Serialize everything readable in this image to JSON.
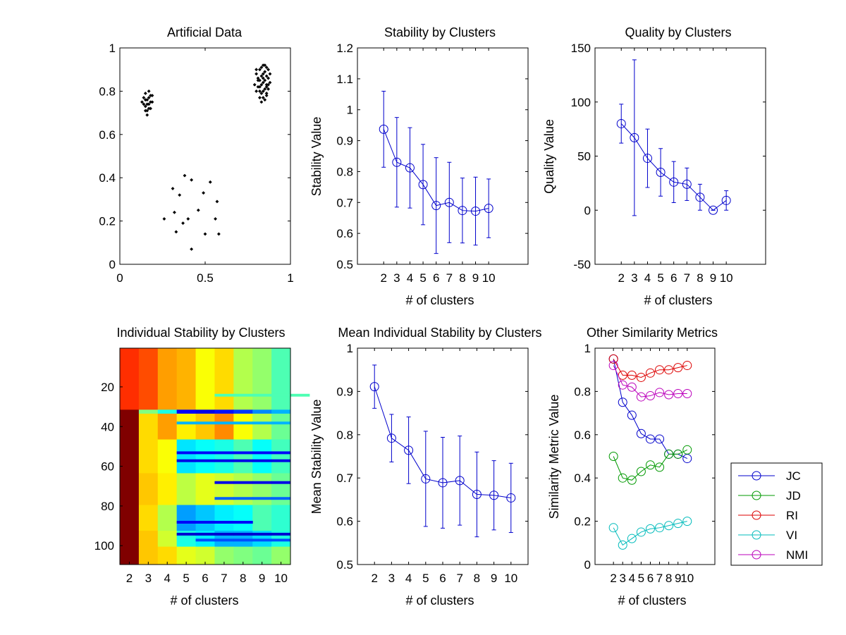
{
  "chart_data": [
    {
      "id": "p1",
      "type": "scatter",
      "title": "Artificial Data",
      "xlabel": "",
      "ylabel": "",
      "xlim": [
        0,
        1
      ],
      "ylim": [
        0,
        1
      ],
      "xticks": [
        0,
        0.5,
        1
      ],
      "yticks": [
        0,
        0.2,
        0.4,
        0.6,
        0.8,
        1
      ],
      "marker_color": "#000000",
      "clusters": [
        {
          "name": "",
          "points": [
            [
              0.14,
              0.77
            ],
            [
              0.15,
              0.79
            ],
            [
              0.16,
              0.76
            ],
            [
              0.17,
              0.74
            ],
            [
              0.15,
              0.73
            ],
            [
              0.18,
              0.78
            ],
            [
              0.16,
              0.71
            ],
            [
              0.17,
              0.8
            ],
            [
              0.19,
              0.75
            ],
            [
              0.14,
              0.74
            ],
            [
              0.16,
              0.69
            ],
            [
              0.18,
              0.72
            ],
            [
              0.15,
              0.76
            ],
            [
              0.17,
              0.77
            ],
            [
              0.13,
              0.75
            ],
            [
              0.19,
              0.78
            ],
            [
              0.16,
              0.74
            ],
            [
              0.18,
              0.75
            ],
            [
              0.15,
              0.71
            ],
            [
              0.17,
              0.72
            ]
          ]
        },
        {
          "name": "",
          "points": [
            [
              0.38,
              0.41
            ],
            [
              0.42,
              0.39
            ],
            [
              0.31,
              0.35
            ],
            [
              0.53,
              0.38
            ],
            [
              0.35,
              0.32
            ],
            [
              0.49,
              0.33
            ],
            [
              0.57,
              0.29
            ],
            [
              0.26,
              0.21
            ],
            [
              0.32,
              0.24
            ],
            [
              0.46,
              0.25
            ],
            [
              0.56,
              0.21
            ],
            [
              0.4,
              0.21
            ],
            [
              0.37,
              0.19
            ],
            [
              0.33,
              0.15
            ],
            [
              0.5,
              0.14
            ],
            [
              0.58,
              0.14
            ],
            [
              0.42,
              0.07
            ]
          ]
        },
        {
          "name": "",
          "points": [
            [
              0.82,
              0.9
            ],
            [
              0.84,
              0.92
            ],
            [
              0.86,
              0.91
            ],
            [
              0.8,
              0.88
            ],
            [
              0.83,
              0.87
            ],
            [
              0.85,
              0.89
            ],
            [
              0.87,
              0.86
            ],
            [
              0.81,
              0.85
            ],
            [
              0.84,
              0.84
            ],
            [
              0.86,
              0.83
            ],
            [
              0.79,
              0.83
            ],
            [
              0.82,
              0.82
            ],
            [
              0.85,
              0.81
            ],
            [
              0.88,
              0.84
            ],
            [
              0.8,
              0.8
            ],
            [
              0.83,
              0.79
            ],
            [
              0.86,
              0.79
            ],
            [
              0.84,
              0.77
            ],
            [
              0.82,
              0.77
            ],
            [
              0.87,
              0.81
            ],
            [
              0.85,
              0.76
            ],
            [
              0.83,
              0.75
            ],
            [
              0.86,
              0.78
            ],
            [
              0.81,
              0.86
            ],
            [
              0.84,
              0.88
            ],
            [
              0.88,
              0.88
            ],
            [
              0.8,
              0.9
            ],
            [
              0.87,
              0.9
            ],
            [
              0.83,
              0.83
            ],
            [
              0.85,
              0.85
            ],
            [
              0.82,
              0.8
            ],
            [
              0.86,
              0.87
            ],
            [
              0.84,
              0.8
            ],
            [
              0.81,
              0.82
            ],
            [
              0.87,
              0.83
            ],
            [
              0.83,
              0.91
            ],
            [
              0.85,
              0.92
            ],
            [
              0.84,
              0.86
            ],
            [
              0.82,
              0.85
            ],
            [
              0.86,
              0.82
            ]
          ]
        }
      ]
    },
    {
      "id": "p2",
      "type": "line",
      "title": "Stability by Clusters",
      "xlabel": "# of clusters",
      "ylabel": "Stability Value",
      "xlim": [
        0,
        13
      ],
      "ylim": [
        0.5,
        1.2
      ],
      "xticks": [
        2,
        3,
        4,
        5,
        6,
        7,
        8,
        9,
        10
      ],
      "yticks": [
        0.5,
        0.6,
        0.7,
        0.8,
        0.9,
        1,
        1.1,
        1.2
      ],
      "x": [
        2,
        3,
        4,
        5,
        6,
        7,
        8,
        9,
        10
      ],
      "series": [
        {
          "name": "",
          "color": "#0000cc",
          "marker": "circle",
          "values": [
            0.937,
            0.83,
            0.812,
            0.758,
            0.69,
            0.7,
            0.674,
            0.672,
            0.681
          ],
          "err": [
            0.123,
            0.145,
            0.13,
            0.13,
            0.155,
            0.13,
            0.105,
            0.11,
            0.095
          ]
        }
      ]
    },
    {
      "id": "p3",
      "type": "line",
      "title": "Quality by Clusters",
      "xlabel": "# of clusters",
      "ylabel": "Quality Value",
      "xlim": [
        0,
        13
      ],
      "ylim": [
        -50,
        150
      ],
      "xticks": [
        2,
        3,
        4,
        5,
        6,
        7,
        8,
        9,
        10
      ],
      "yticks": [
        -50,
        0,
        50,
        100,
        150
      ],
      "x": [
        2,
        3,
        4,
        5,
        6,
        7,
        8,
        9,
        10
      ],
      "series": [
        {
          "name": "",
          "color": "#0000cc",
          "marker": "circle",
          "values": [
            80,
            67,
            48,
            35,
            26,
            24,
            12,
            0,
            9
          ],
          "err": [
            18,
            72,
            27,
            22,
            19,
            15,
            12,
            0,
            9
          ]
        }
      ]
    },
    {
      "id": "p4",
      "type": "heatmap",
      "title": "Individual Stability by Clusters",
      "xlabel": "# of clusters",
      "ylabel": "",
      "categories": [
        "2",
        "3",
        "4",
        "5",
        "6",
        "7",
        "8",
        "9",
        "10"
      ],
      "rows": 109,
      "yticks": [
        20,
        40,
        60,
        80,
        100
      ],
      "bands": [
        {
          "from": 1,
          "to": 31,
          "cells": [
            0.83,
            0.8,
            0.72,
            0.7,
            0.62,
            0.66,
            0.55,
            0.52,
            0.45
          ]
        },
        {
          "from": 32,
          "to": 33,
          "cells": [
            1.0,
            0.5,
            0.4,
            0.12,
            0.1,
            0.14,
            0.18,
            0.26,
            0.3
          ]
        },
        {
          "from": 34,
          "to": 46,
          "cells": [
            1.0,
            0.66,
            0.72,
            0.64,
            0.68,
            0.74,
            0.62,
            0.55,
            0.48
          ]
        },
        {
          "from": 47,
          "to": 63,
          "cells": [
            1.0,
            0.66,
            0.62,
            0.35,
            0.38,
            0.4,
            0.45,
            0.38,
            0.44
          ]
        },
        {
          "from": 64,
          "to": 79,
          "cells": [
            1.0,
            0.68,
            0.64,
            0.56,
            0.6,
            0.58,
            0.55,
            0.52,
            0.48
          ]
        },
        {
          "from": 80,
          "to": 92,
          "cells": [
            1.0,
            0.66,
            0.55,
            0.28,
            0.32,
            0.36,
            0.38,
            0.45,
            0.42
          ]
        },
        {
          "from": 93,
          "to": 100,
          "cells": [
            1.0,
            0.68,
            0.58,
            0.4,
            0.36,
            0.3,
            0.3,
            0.34,
            0.4
          ]
        },
        {
          "from": 101,
          "to": 109,
          "cells": [
            1.0,
            0.68,
            0.66,
            0.6,
            0.58,
            0.52,
            0.5,
            0.48,
            0.52
          ]
        }
      ],
      "stripes": [
        {
          "row": 24,
          "cols": [
            5,
            6,
            7,
            8,
            9
          ],
          "value": 0.45
        },
        {
          "row": 38,
          "cols": [
            3,
            4,
            5,
            6,
            7,
            8
          ],
          "value": 0.3
        },
        {
          "row": 53,
          "cols": [
            3,
            4,
            5,
            6,
            7,
            8
          ],
          "value": 0.12
        },
        {
          "row": 57,
          "cols": [
            3,
            4,
            5,
            6,
            7,
            8
          ],
          "value": 0.1
        },
        {
          "row": 68,
          "cols": [
            5,
            6,
            7,
            8
          ],
          "value": 0.1
        },
        {
          "row": 76,
          "cols": [
            5,
            6,
            7,
            8
          ],
          "value": 0.22
        },
        {
          "row": 88,
          "cols": [
            3,
            4,
            5,
            6
          ],
          "value": 0.12
        },
        {
          "row": 94,
          "cols": [
            3,
            4,
            5,
            6,
            7,
            8
          ],
          "value": 0.08
        },
        {
          "row": 97,
          "cols": [
            4,
            5,
            6,
            7,
            8
          ],
          "value": 0.2
        }
      ]
    },
    {
      "id": "p5",
      "type": "line",
      "title": "Mean Individual Stability by Clusters",
      "xlabel": "# of clusters",
      "ylabel": "Mean Stability Value",
      "xlim": [
        1,
        11
      ],
      "ylim": [
        0.5,
        1
      ],
      "xticks": [
        2,
        3,
        4,
        5,
        6,
        7,
        8,
        9,
        10
      ],
      "yticks": [
        0.5,
        0.6,
        0.7,
        0.8,
        0.9,
        1
      ],
      "x": [
        2,
        3,
        4,
        5,
        6,
        7,
        8,
        9,
        10
      ],
      "series": [
        {
          "name": "",
          "color": "#0000cc",
          "marker": "circle",
          "values": [
            0.911,
            0.792,
            0.764,
            0.698,
            0.689,
            0.694,
            0.662,
            0.66,
            0.654
          ],
          "err": [
            0.05,
            0.055,
            0.077,
            0.11,
            0.105,
            0.103,
            0.098,
            0.08,
            0.08
          ]
        }
      ]
    },
    {
      "id": "p6",
      "type": "line",
      "title": "Other Similarity Metrics",
      "xlabel": "# of clusters",
      "ylabel": "Similarity Metric Value",
      "xlim": [
        0,
        13
      ],
      "ylim": [
        0,
        1
      ],
      "xticks": [
        2,
        3,
        4,
        5,
        6,
        7,
        8,
        9,
        10
      ],
      "yticks": [
        0,
        0.2,
        0.4,
        0.6,
        0.8,
        1
      ],
      "x": [
        2,
        3,
        4,
        5,
        6,
        7,
        8,
        9,
        10
      ],
      "legend_position": "outside-right",
      "series": [
        {
          "name": "JC",
          "color": "#0000cc",
          "values": [
            0.95,
            0.75,
            0.69,
            0.605,
            0.58,
            0.58,
            0.51,
            0.51,
            0.49
          ]
        },
        {
          "name": "JD",
          "color": "#009900",
          "values": [
            0.5,
            0.4,
            0.39,
            0.43,
            0.46,
            0.45,
            0.51,
            0.51,
            0.53
          ]
        },
        {
          "name": "RI",
          "color": "#dd0000",
          "values": [
            0.95,
            0.875,
            0.875,
            0.865,
            0.885,
            0.9,
            0.9,
            0.91,
            0.92
          ]
        },
        {
          "name": "VI",
          "color": "#00bbbb",
          "values": [
            0.17,
            0.09,
            0.12,
            0.15,
            0.165,
            0.17,
            0.18,
            0.19,
            0.2
          ]
        },
        {
          "name": "NMI",
          "color": "#bb00bb",
          "values": [
            0.92,
            0.83,
            0.82,
            0.775,
            0.78,
            0.795,
            0.785,
            0.79,
            0.79
          ]
        }
      ]
    }
  ]
}
